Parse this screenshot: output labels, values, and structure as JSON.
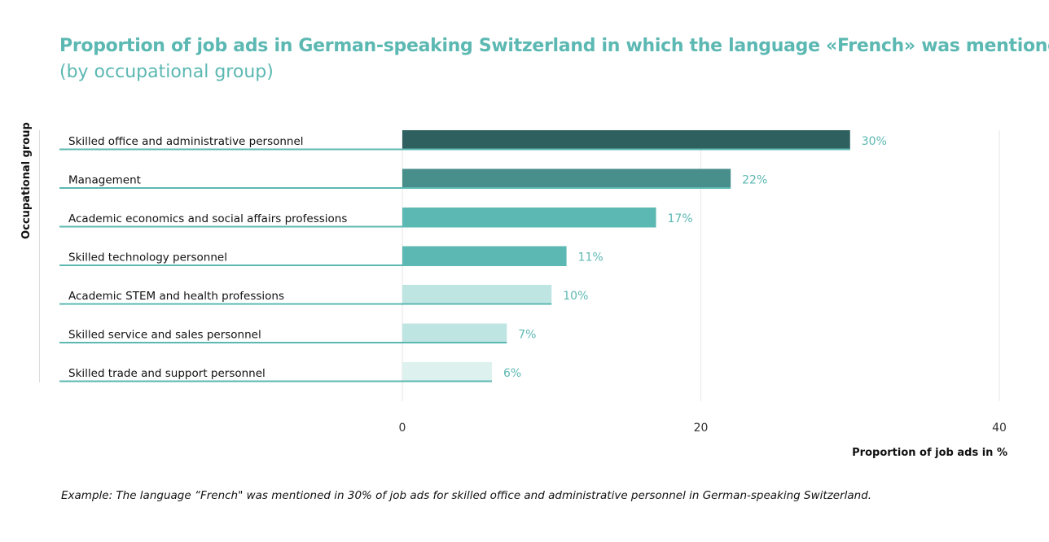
{
  "chart_data": {
    "type": "bar",
    "orientation": "horizontal",
    "title": "Proportion of job ads in German-speaking Switzerland in which the language «French» was mentioned",
    "subtitle": "(by occupational group)",
    "xlabel": "Proportion of job ads in %",
    "ylabel": "Occupational group",
    "xlim": [
      0,
      40
    ],
    "xticks": [
      "0",
      "20",
      "40"
    ],
    "grid": true,
    "categories": [
      "Skilled office and administrative personnel",
      "Management",
      "Academic economics and social affairs professions",
      "Skilled technology personnel",
      "Academic STEM and health professions",
      "Skilled service and sales personnel",
      "Skilled trade and support personnel"
    ],
    "values": [
      30,
      22,
      17,
      11,
      10,
      7,
      6
    ],
    "data_labels": [
      "30%",
      "22%",
      "17%",
      "11%",
      "10%",
      "7%",
      "6%"
    ],
    "colors": [
      "#2f6060",
      "#488f8c",
      "#5cb8b2",
      "#5cb8b2",
      "#bfe5e3",
      "#bfe5e3",
      "#ddf1ef"
    ],
    "accent_color": "#5cb8b2"
  },
  "footnote": "Example: The language “French\" was mentioned in 30% of job ads for skilled office and administrative personnel in German-speaking Switzerland."
}
